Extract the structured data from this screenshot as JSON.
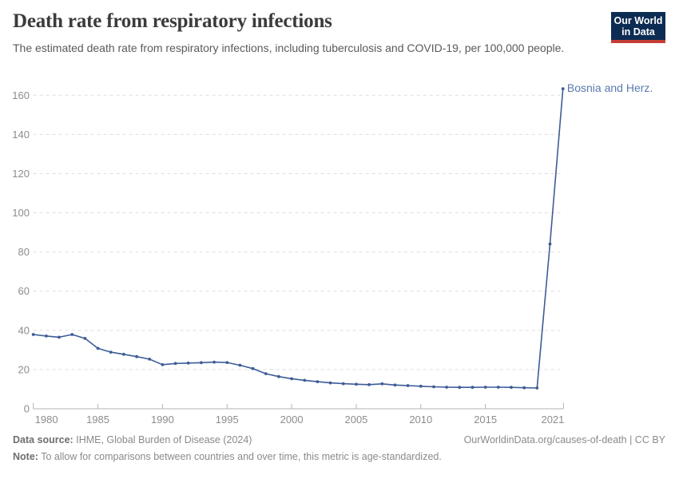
{
  "header": {
    "title": "Death rate from respiratory infections",
    "subtitle": "The estimated death rate from respiratory infections, including tuberculosis and COVID-19, per 100,000 people.",
    "logo": {
      "line1": "Our World",
      "line2": "in Data"
    }
  },
  "chart_data": {
    "type": "line",
    "title": "Death rate from respiratory infections",
    "entity_label": "Bosnia and Herz.",
    "xlabel": "",
    "ylabel": "",
    "ylim": [
      0,
      170
    ],
    "xlim": [
      1980,
      2021
    ],
    "grid": "horizontal-dashed",
    "legend_position": "end-of-line-label",
    "yticks": [
      0,
      20,
      40,
      60,
      80,
      100,
      120,
      140,
      160
    ],
    "xticks": [
      1980,
      1985,
      1990,
      1995,
      2000,
      2005,
      2010,
      2015,
      2021
    ],
    "x": [
      1980,
      1981,
      1982,
      1983,
      1984,
      1985,
      1986,
      1987,
      1988,
      1989,
      1990,
      1991,
      1992,
      1993,
      1994,
      1995,
      1996,
      1997,
      1998,
      1999,
      2000,
      2001,
      2002,
      2003,
      2004,
      2005,
      2006,
      2007,
      2008,
      2009,
      2010,
      2011,
      2012,
      2013,
      2014,
      2015,
      2016,
      2017,
      2018,
      2019,
      2020,
      2021
    ],
    "series": [
      {
        "name": "Bosnia and Herz.",
        "values": [
          37.9,
          37.1,
          36.5,
          37.9,
          35.9,
          30.8,
          28.9,
          27.8,
          26.6,
          25.3,
          22.5,
          23.1,
          23.3,
          23.5,
          23.8,
          23.6,
          22.2,
          20.5,
          17.9,
          16.4,
          15.3,
          14.5,
          13.8,
          13.2,
          12.8,
          12.5,
          12.3,
          12.7,
          12.1,
          11.8,
          11.5,
          11.2,
          11.0,
          10.9,
          10.9,
          11.0,
          11.0,
          10.9,
          10.7,
          10.6,
          84.1,
          163.3
        ]
      }
    ],
    "colors": {
      "line": "#3d5c96",
      "entity_label": "#5879ae",
      "gridline": "#dedede",
      "axis": "#b3b3b3",
      "tick_text": "#8c8c8c"
    }
  },
  "footer": {
    "data_source_label": "Data source:",
    "data_source_value": "IHME, Global Burden of Disease (2024)",
    "link": "OurWorldinData.org/causes-of-death | CC BY",
    "note_label": "Note:",
    "note_value": "To allow for comparisons between countries and over time, this metric is age-standardized."
  }
}
